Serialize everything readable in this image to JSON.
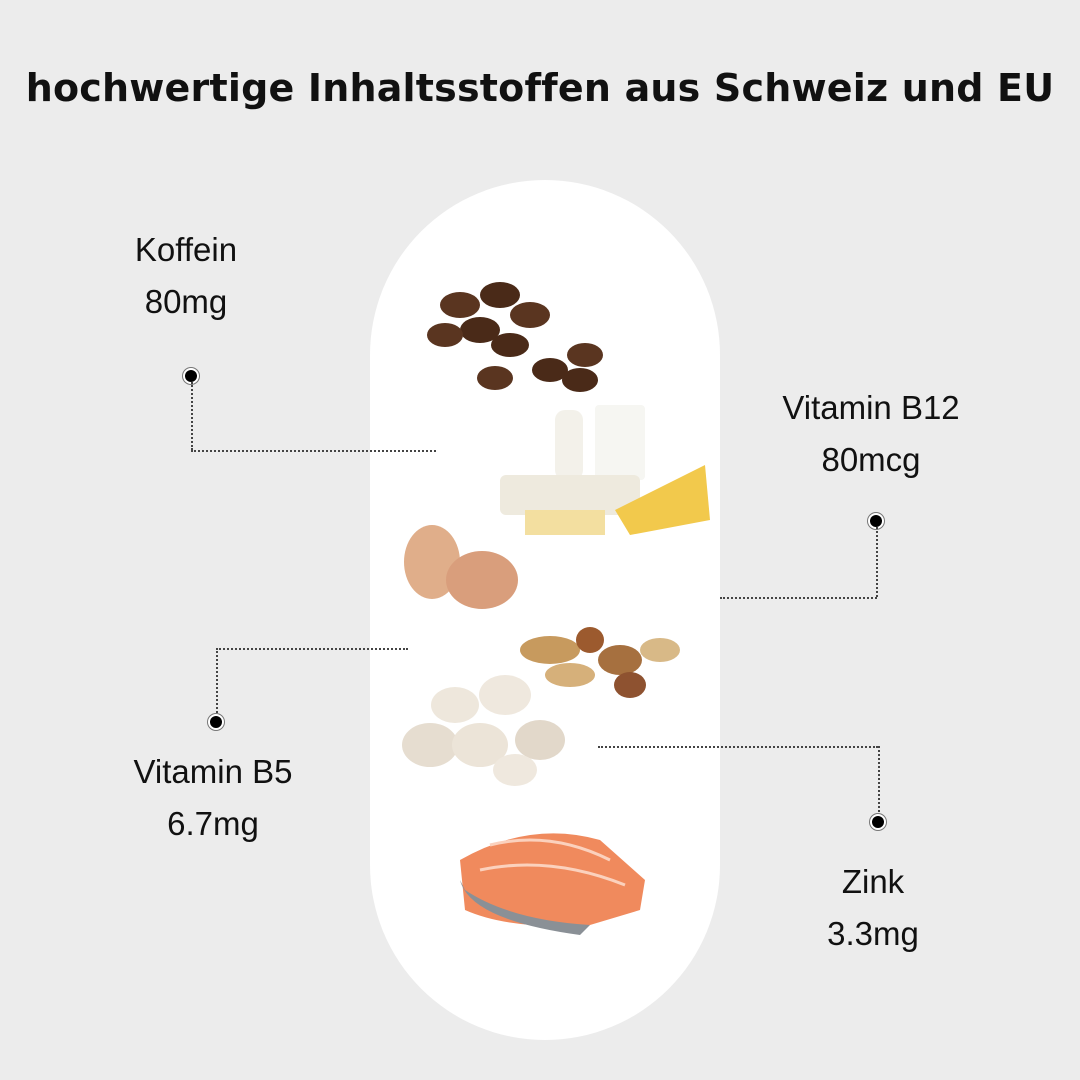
{
  "title": "hochwertige Inhaltsstoffen aus Schweiz und EU",
  "ingredients": [
    {
      "name": "Koffein",
      "amount": "80mg"
    },
    {
      "name": "Vitamin B12",
      "amount": "80mcg"
    },
    {
      "name": "Vitamin B5",
      "amount": "6.7mg"
    },
    {
      "name": "Zink",
      "amount": "3.3mg"
    }
  ],
  "colors": {
    "background": "#ececec",
    "pill": "#ffffff",
    "text": "#111111"
  }
}
